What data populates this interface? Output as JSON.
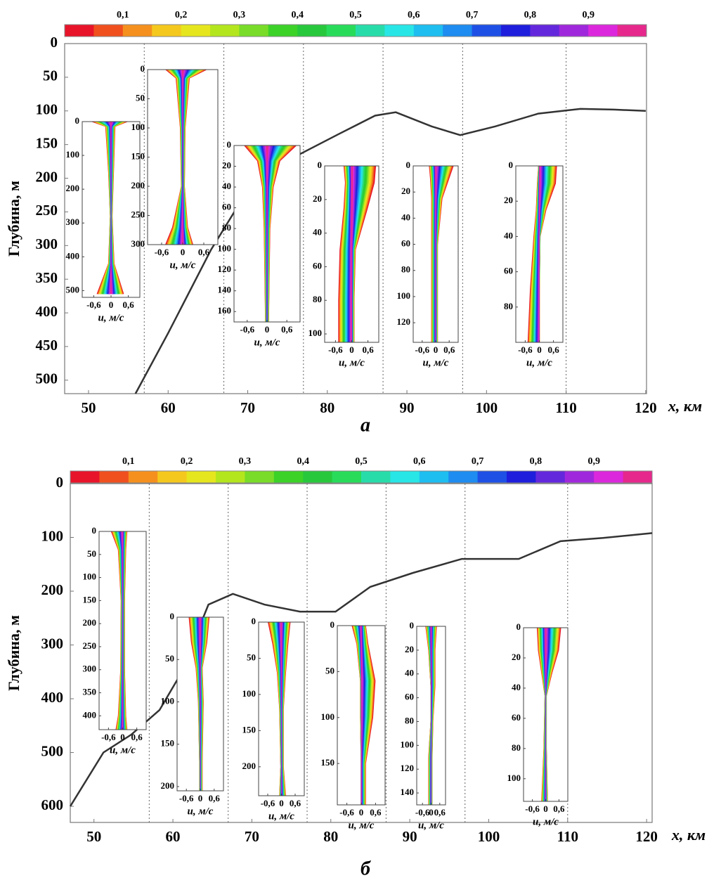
{
  "chart_data": [
    {
      "type": "line",
      "caption": "а",
      "ylabel": "Глубина, м",
      "xlabel": "x, км",
      "colorbar": {
        "range": [
          0,
          1
        ],
        "ticks": [
          {
            "value": 0.1,
            "label": "0,1"
          },
          {
            "value": 0.2,
            "label": "0,2"
          },
          {
            "value": 0.3,
            "label": "0,3"
          },
          {
            "value": 0.4,
            "label": "0,4"
          },
          {
            "value": 0.5,
            "label": "0,5"
          },
          {
            "value": 0.6,
            "label": "0,6"
          },
          {
            "value": 0.7,
            "label": "0,7"
          },
          {
            "value": 0.8,
            "label": "0,8"
          },
          {
            "value": 0.9,
            "label": "0,9"
          }
        ],
        "colors": [
          "#e8142a",
          "#f0501e",
          "#f5901e",
          "#f5c81e",
          "#e6e61e",
          "#b4e61e",
          "#78dc28",
          "#3cd228",
          "#28c83c",
          "#28dc5a",
          "#28dcaa",
          "#28e6e6",
          "#1ebef0",
          "#1e8cf0",
          "#1e50e6",
          "#1e1edc",
          "#6428dc",
          "#a028dc",
          "#dc28dc",
          "#e6288c"
        ]
      },
      "xlim": [
        47,
        120.1
      ],
      "ylim": [
        520,
        0
      ],
      "xticks": [
        50,
        60,
        70,
        80,
        90,
        100,
        110,
        120
      ],
      "yticks": [
        0,
        50,
        100,
        150,
        200,
        250,
        300,
        350,
        400,
        450,
        500
      ],
      "vlines": [
        57,
        67,
        77,
        87,
        97,
        110
      ],
      "color": "#333333",
      "x": [
        55.9,
        60,
        65.4,
        70.3,
        76.1,
        81.5,
        86,
        88.6,
        93.1,
        96.7,
        101.1,
        106.5,
        111.8,
        116,
        120
      ],
      "values": [
        520,
        430,
        306,
        212,
        167,
        134,
        107,
        102,
        123,
        136,
        123,
        104,
        97,
        98,
        100
      ],
      "insets": [
        {
          "xlim": [
            -1,
            1
          ],
          "ylim": [
            520,
            0
          ],
          "yticks": [
            0,
            100,
            200,
            300,
            400,
            500
          ],
          "xticks": [
            {
              "value": -0.6,
              "label": "-0,6"
            },
            0,
            {
              "value": 0.6,
              "label": "0,6"
            }
          ],
          "xlabel": "u, м/с",
          "profile": {
            "depth": [
              0,
              15,
              150,
              280,
              420,
              510
            ],
            "u_min": [
              -0.7,
              -0.2,
              -0.1,
              -0.04,
              -0.1,
              -0.5
            ],
            "u_max": [
              0.6,
              0.15,
              0.1,
              0.05,
              0.12,
              0.45
            ]
          }
        },
        {
          "xlim": [
            -1,
            1
          ],
          "ylim": [
            300,
            0
          ],
          "yticks": [
            0,
            50,
            100,
            150,
            200,
            250,
            300
          ],
          "xticks": [
            {
              "value": -0.6,
              "label": "-0,6"
            },
            0,
            {
              "value": 0.6,
              "label": "0,6"
            }
          ],
          "xlabel": "u, м/с",
          "profile": {
            "depth": [
              0,
              15,
              100,
              200,
              270,
              300
            ],
            "u_min": [
              -0.5,
              -0.2,
              -0.08,
              -0.05,
              -0.3,
              -0.5
            ],
            "u_max": [
              0.7,
              0.2,
              0.08,
              0.06,
              0.15,
              0.3
            ]
          }
        },
        {
          "xlim": [
            -1,
            1
          ],
          "ylim": [
            170,
            0
          ],
          "yticks": [
            0,
            20,
            40,
            60,
            80,
            100,
            120,
            140,
            160
          ],
          "xticks": [
            {
              "value": -0.6,
              "label": "-0,6"
            },
            0,
            {
              "value": 0.6,
              "label": "0,6"
            }
          ],
          "xlabel": "u, м/с",
          "profile": {
            "depth": [
              0,
              15,
              40,
              80,
              120,
              170
            ],
            "u_min": [
              -0.7,
              -0.3,
              -0.15,
              -0.1,
              -0.08,
              -0.06
            ],
            "u_max": [
              0.9,
              0.4,
              0.2,
              0.1,
              0.08,
              0.06
            ]
          }
        },
        {
          "xlim": [
            -1,
            1
          ],
          "ylim": [
            105,
            0
          ],
          "yticks": [
            0,
            20,
            40,
            60,
            80,
            100
          ],
          "xticks": [
            {
              "value": -0.6,
              "label": "-0,6"
            },
            0,
            {
              "value": 0.6,
              "label": "0,6"
            }
          ],
          "xlabel": "u, м/с",
          "profile": {
            "depth": [
              0,
              10,
              25,
              50,
              80,
              105
            ],
            "u_min": [
              -0.3,
              -0.25,
              -0.3,
              -0.45,
              -0.5,
              -0.5
            ],
            "u_max": [
              0.9,
              0.85,
              0.6,
              0.15,
              0.1,
              0.1
            ]
          }
        },
        {
          "xlim": [
            -1,
            1
          ],
          "ylim": [
            135,
            0
          ],
          "yticks": [
            0,
            20,
            40,
            60,
            80,
            100,
            120
          ],
          "xticks": [
            {
              "value": -0.6,
              "label": "-0,6"
            },
            0,
            {
              "value": 0.6,
              "label": "0,6"
            }
          ],
          "xlabel": "u, м/с",
          "profile": {
            "depth": [
              0,
              10,
              25,
              60,
              100,
              135
            ],
            "u_min": [
              -0.3,
              -0.25,
              -0.2,
              -0.2,
              -0.2,
              -0.2
            ],
            "u_max": [
              0.8,
              0.6,
              0.3,
              0.1,
              0.1,
              0.1
            ]
          }
        },
        {
          "xlim": [
            -1,
            1
          ],
          "ylim": [
            100,
            0
          ],
          "yticks": [
            0,
            20,
            40,
            60,
            80
          ],
          "xticks": [
            {
              "value": -0.6,
              "label": "-0,6"
            },
            0,
            {
              "value": 0.6,
              "label": "0,6"
            }
          ],
          "xlabel": "u, м/с",
          "profile": {
            "depth": [
              0,
              10,
              25,
              40,
              70,
              100
            ],
            "u_min": [
              -0.05,
              -0.1,
              -0.15,
              -0.25,
              -0.4,
              -0.5
            ],
            "u_max": [
              0.75,
              0.7,
              0.3,
              0.05,
              0.02,
              0.02
            ]
          }
        }
      ]
    },
    {
      "type": "line",
      "caption": "б",
      "ylabel": "Глубина, м",
      "xlabel": "x, км",
      "colorbar": {
        "range": [
          0,
          1
        ],
        "ticks": [
          {
            "value": 0.1,
            "label": "0,1"
          },
          {
            "value": 0.2,
            "label": "0,2"
          },
          {
            "value": 0.3,
            "label": "0,3"
          },
          {
            "value": 0.4,
            "label": "0,4"
          },
          {
            "value": 0.5,
            "label": "0,5"
          },
          {
            "value": 0.6,
            "label": "0,6"
          },
          {
            "value": 0.7,
            "label": "0,7"
          },
          {
            "value": 0.8,
            "label": "0,8"
          },
          {
            "value": 0.9,
            "label": "0,9"
          }
        ],
        "colors": [
          "#e8142a",
          "#f0501e",
          "#f5901e",
          "#f5c81e",
          "#e6e61e",
          "#b4e61e",
          "#78dc28",
          "#3cd228",
          "#28c83c",
          "#28dc5a",
          "#28dcaa",
          "#28e6e6",
          "#1ebef0",
          "#1e8cf0",
          "#1e50e6",
          "#1e1edc",
          "#6428dc",
          "#a028dc",
          "#dc28dc",
          "#e6288c"
        ]
      },
      "xlim": [
        47,
        120.7
      ],
      "ylim": [
        630,
        0
      ],
      "xticks": [
        50,
        60,
        70,
        80,
        90,
        100,
        110,
        120
      ],
      "yticks": [
        0,
        100,
        200,
        300,
        400,
        500,
        600
      ],
      "vlines": [
        57,
        67,
        77,
        87,
        97,
        110
      ],
      "color": "#333333",
      "x": [
        47,
        51.2,
        54.7,
        58.3,
        60.9,
        64.5,
        67.6,
        71.6,
        76.1,
        80.6,
        85,
        90.4,
        96.6,
        103.8,
        109.1,
        114.5,
        120.7
      ],
      "values": [
        600,
        500,
        467,
        421,
        356,
        225,
        205,
        225,
        238,
        238,
        192,
        166,
        140,
        140,
        107,
        101,
        92
      ],
      "insets": [
        {
          "xlim": [
            -1,
            1
          ],
          "ylim": [
            430,
            0
          ],
          "yticks": [
            0,
            50,
            100,
            150,
            200,
            250,
            300,
            350,
            400
          ],
          "xticks": [
            {
              "value": -0.6,
              "label": "-0,6"
            },
            0,
            {
              "value": 0.6,
              "label": "0,6"
            }
          ],
          "xlabel": "u, м/с",
          "profile": {
            "depth": [
              0,
              40,
              150,
              300,
              400,
              430
            ],
            "u_min": [
              -0.5,
              -0.2,
              -0.08,
              -0.1,
              -0.2,
              -0.3
            ],
            "u_max": [
              0.2,
              0.15,
              0.1,
              0.1,
              0.15,
              0.2
            ]
          }
        },
        {
          "xlim": [
            -1,
            1
          ],
          "ylim": [
            205,
            0
          ],
          "yticks": [
            0,
            50,
            100,
            150,
            200
          ],
          "xticks": [
            {
              "value": -0.6,
              "label": "-0,6"
            },
            0,
            {
              "value": 0.6,
              "label": "0,6"
            }
          ],
          "xlabel": "u, м/с",
          "profile": {
            "depth": [
              0,
              30,
              60,
              100,
              170,
              205
            ],
            "u_min": [
              -0.5,
              -0.4,
              -0.2,
              -0.1,
              -0.05,
              -0.05
            ],
            "u_max": [
              0.4,
              0.3,
              0.1,
              0.15,
              0.1,
              0.1
            ]
          }
        },
        {
          "xlim": [
            -1,
            1
          ],
          "ylim": [
            240,
            0
          ],
          "yticks": [
            0,
            50,
            100,
            150,
            200
          ],
          "xticks": [
            {
              "value": -0.6,
              "label": "-0,6"
            },
            0,
            {
              "value": 0.6,
              "label": "0,6"
            }
          ],
          "xlabel": "u, м/с",
          "profile": {
            "depth": [
              0,
              30,
              70,
              120,
              200,
              240
            ],
            "u_min": [
              -0.6,
              -0.4,
              -0.2,
              -0.1,
              -0.05,
              -0.1
            ],
            "u_max": [
              0.4,
              0.3,
              0.2,
              0.1,
              0.1,
              0.2
            ]
          }
        },
        {
          "xlim": [
            -1,
            1
          ],
          "ylim": [
            195,
            0
          ],
          "yticks": [
            0,
            50,
            100,
            150
          ],
          "xticks": [
            {
              "value": -0.6,
              "label": "-0,6"
            },
            0,
            {
              "value": 0.6,
              "label": "0,6"
            }
          ],
          "xlabel": "u, м/с",
          "profile": {
            "depth": [
              0,
              20,
              60,
              100,
              150,
              195
            ],
            "u_min": [
              -0.4,
              -0.2,
              -0.05,
              -0.05,
              -0.02,
              -0.02
            ],
            "u_max": [
              0.2,
              0.3,
              0.6,
              0.5,
              0.2,
              0.2
            ]
          }
        },
        {
          "xlim": [
            -1,
            1
          ],
          "ylim": [
            150,
            0
          ],
          "yticks": [
            0,
            20,
            40,
            60,
            80,
            100,
            120,
            140
          ],
          "xticks": [
            {
              "value": -0.6,
              "label": "-0,6"
            },
            0,
            {
              "value": 0.6,
              "label": "0,6"
            }
          ],
          "xlabel": "u, м/с",
          "profile": {
            "depth": [
              0,
              20,
              50,
              80,
              110,
              150
            ],
            "u_min": [
              -0.4,
              -0.2,
              -0.05,
              -0.05,
              -0.2,
              -0.2
            ],
            "u_max": [
              0.4,
              0.3,
              0.3,
              0.15,
              0.1,
              0.1
            ]
          }
        },
        {
          "xlim": [
            -1,
            1
          ],
          "ylim": [
            115,
            0
          ],
          "yticks": [
            0,
            20,
            40,
            60,
            80,
            100
          ],
          "xticks": [
            {
              "value": -0.6,
              "label": "-0,6"
            },
            0,
            {
              "value": 0.6,
              "label": "0,6"
            }
          ],
          "xlabel": "u, м/с",
          "profile": {
            "depth": [
              0,
              15,
              30,
              45,
              80,
              115
            ],
            "u_min": [
              -0.4,
              -0.35,
              -0.2,
              -0.05,
              -0.1,
              -0.2
            ],
            "u_max": [
              0.7,
              0.6,
              0.3,
              0.05,
              0.05,
              0.1
            ]
          }
        }
      ]
    }
  ]
}
